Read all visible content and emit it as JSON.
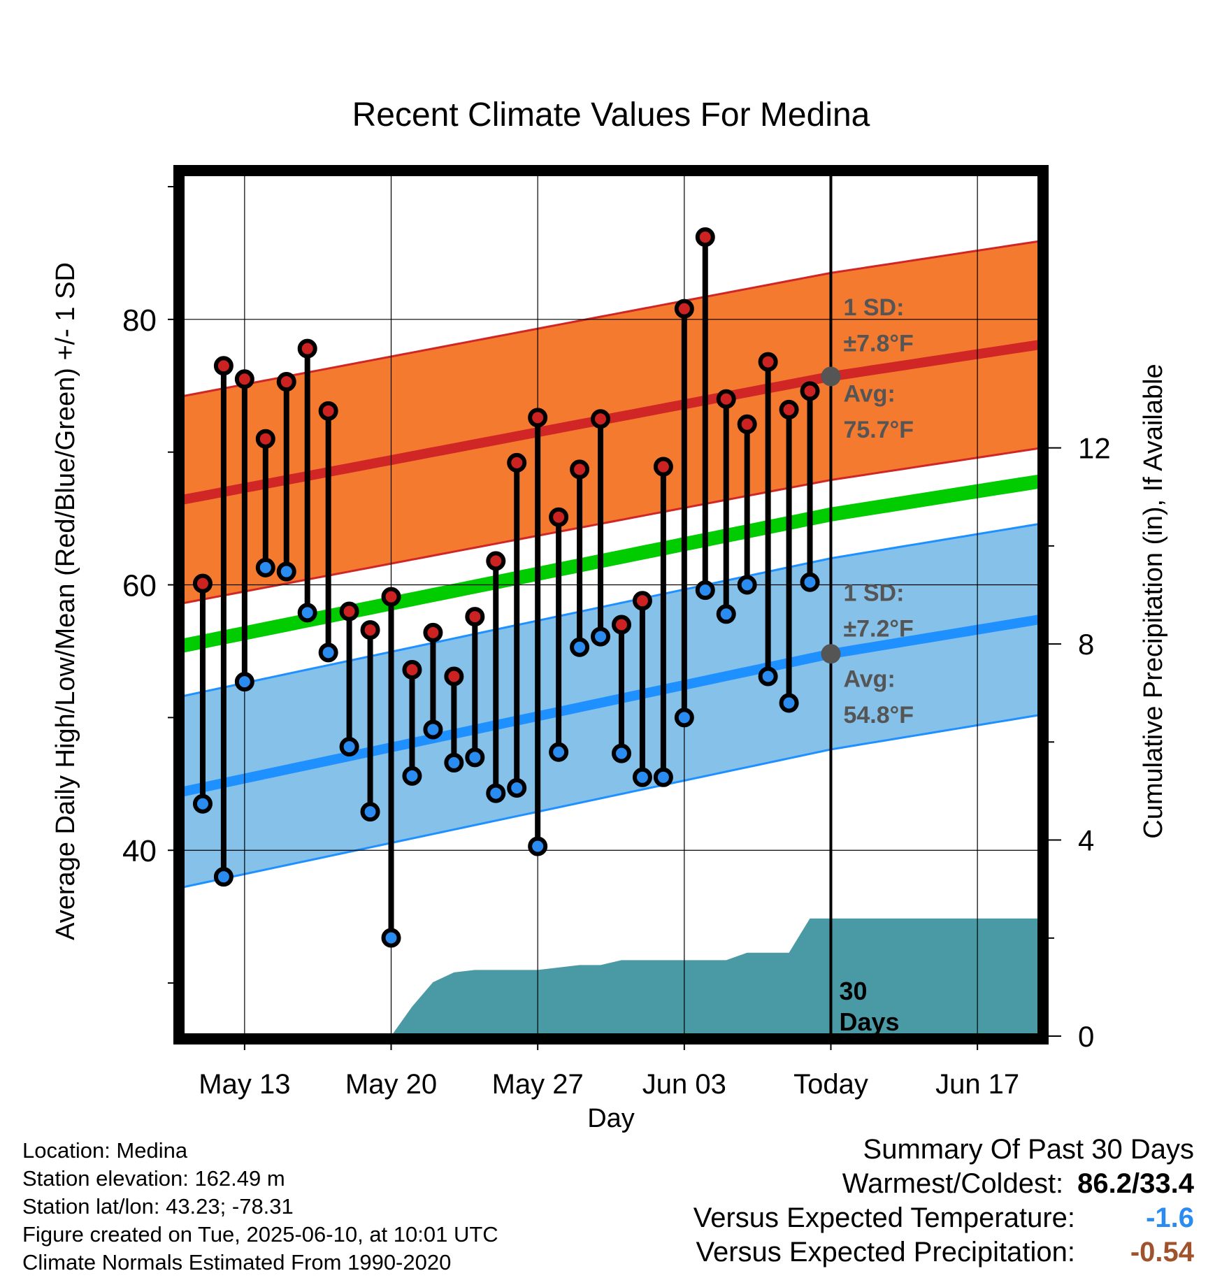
{
  "chart_data": {
    "type": "line",
    "title": "Recent Climate Values For Medina",
    "xlabel": "Day",
    "ylabel_left": "Average Daily High/Low/Mean (Red/Blue/Green) +/- 1 SD",
    "ylabel_right": "Cumulative Precipitation (in), If Available",
    "x_tick_labels": [
      "May 13",
      "May 20",
      "May 27",
      "Jun 03",
      "Today",
      "Jun 17"
    ],
    "x_tick_dates": [
      "2025-05-13",
      "2025-05-20",
      "2025-05-27",
      "2025-06-03",
      "2025-06-10",
      "2025-06-17"
    ],
    "xlim": [
      "2025-05-10",
      "2025-06-20"
    ],
    "today": "2025-06-10",
    "ylim_left": [
      26,
      91
    ],
    "yticks_left": [
      40,
      60,
      80
    ],
    "ylim_right": [
      0,
      17.6
    ],
    "yticks_right": [
      0,
      4,
      8,
      12
    ],
    "grid": true,
    "dates": [
      "2025-05-11",
      "2025-05-12",
      "2025-05-13",
      "2025-05-14",
      "2025-05-15",
      "2025-05-16",
      "2025-05-17",
      "2025-05-18",
      "2025-05-19",
      "2025-05-20",
      "2025-05-21",
      "2025-05-22",
      "2025-05-23",
      "2025-05-24",
      "2025-05-25",
      "2025-05-26",
      "2025-05-27",
      "2025-05-28",
      "2025-05-29",
      "2025-05-30",
      "2025-05-31",
      "2025-06-01",
      "2025-06-02",
      "2025-06-03",
      "2025-06-04",
      "2025-06-05",
      "2025-06-06",
      "2025-06-07",
      "2025-06-08",
      "2025-06-09"
    ],
    "observed_high": [
      60.1,
      76.5,
      75.5,
      71.0,
      75.3,
      77.8,
      73.1,
      58.0,
      56.6,
      59.1,
      53.6,
      56.4,
      53.1,
      57.6,
      61.8,
      69.2,
      72.6,
      65.1,
      68.7,
      72.5,
      57.0,
      58.8,
      68.9,
      80.8,
      86.2,
      74.0,
      72.1,
      76.8,
      73.2,
      74.6
    ],
    "observed_low": [
      43.5,
      38.0,
      52.7,
      61.3,
      61.0,
      57.9,
      54.9,
      47.8,
      42.9,
      33.4,
      45.6,
      49.1,
      46.6,
      47.0,
      44.3,
      44.7,
      40.3,
      47.4,
      55.3,
      56.1,
      47.3,
      45.5,
      45.5,
      50.0,
      59.6,
      57.8,
      60.0,
      53.1,
      51.1,
      60.2
    ],
    "normals": {
      "dates": [
        "2025-05-10",
        "2025-06-10",
        "2025-06-20"
      ],
      "high_mean": [
        66.4,
        75.7,
        78.1
      ],
      "high_sd": 7.8,
      "low_mean": [
        44.4,
        54.8,
        57.4
      ],
      "low_sd": 7.2,
      "mean": [
        55.4,
        65.3,
        67.8
      ]
    },
    "precip_dates": [
      "2025-05-20",
      "2025-05-21",
      "2025-05-22",
      "2025-05-23",
      "2025-05-24",
      "2025-05-25",
      "2025-05-26",
      "2025-05-27",
      "2025-05-28",
      "2025-05-29",
      "2025-05-30",
      "2025-05-31",
      "2025-06-01",
      "2025-06-02",
      "2025-06-03",
      "2025-06-04",
      "2025-06-05",
      "2025-06-06",
      "2025-06-07",
      "2025-06-08",
      "2025-06-09",
      "2025-06-20"
    ],
    "precip_cumulative": [
      0.0,
      0.6,
      1.1,
      1.3,
      1.35,
      1.35,
      1.35,
      1.35,
      1.4,
      1.45,
      1.45,
      1.55,
      1.55,
      1.55,
      1.55,
      1.55,
      1.55,
      1.7,
      1.7,
      1.7,
      2.4,
      2.4
    ],
    "annotations": {
      "high_sd_label": "1 SD:",
      "high_sd_value": "±7.8°F",
      "high_avg_label": "Avg:",
      "high_avg_value": "75.7°F",
      "low_sd_label": "1 SD:",
      "low_sd_value": "±7.2°F",
      "low_avg_label": "Avg:",
      "low_avg_value": "54.8°F",
      "days_line1": "30",
      "days_line2": "Days"
    },
    "colors": {
      "high_band": "#f47a2f",
      "high_line": "#d02626",
      "low_band": "#85c1e9",
      "low_line": "#1e90ff",
      "mean_line": "#00cc00",
      "precip": "#4a9aa5",
      "high_point": "#cc2222",
      "low_point": "#2a8cf0",
      "annotation": "#555555"
    }
  },
  "info": {
    "location": "Location: Medina",
    "elevation": "Station elevation: 162.49 m",
    "latlon": "Station lat/lon: 43.23; -78.31",
    "created": "Figure created on Tue, 2025-06-10, at 10:01 UTC",
    "normals": "Climate Normals Estimated From 1990-2020"
  },
  "summary": {
    "title": "Summary Of Past 30 Days",
    "warmest_coldest_label": "Warmest/Coldest:",
    "warmest_coldest_value": "86.2/33.4",
    "temp_label": "Versus Expected Temperature:",
    "temp_value": "-1.6",
    "temp_color": "#2a8cf0",
    "precip_label": "Versus Expected Precipitation:",
    "precip_value": "-0.54",
    "precip_color": "#a0522d"
  }
}
